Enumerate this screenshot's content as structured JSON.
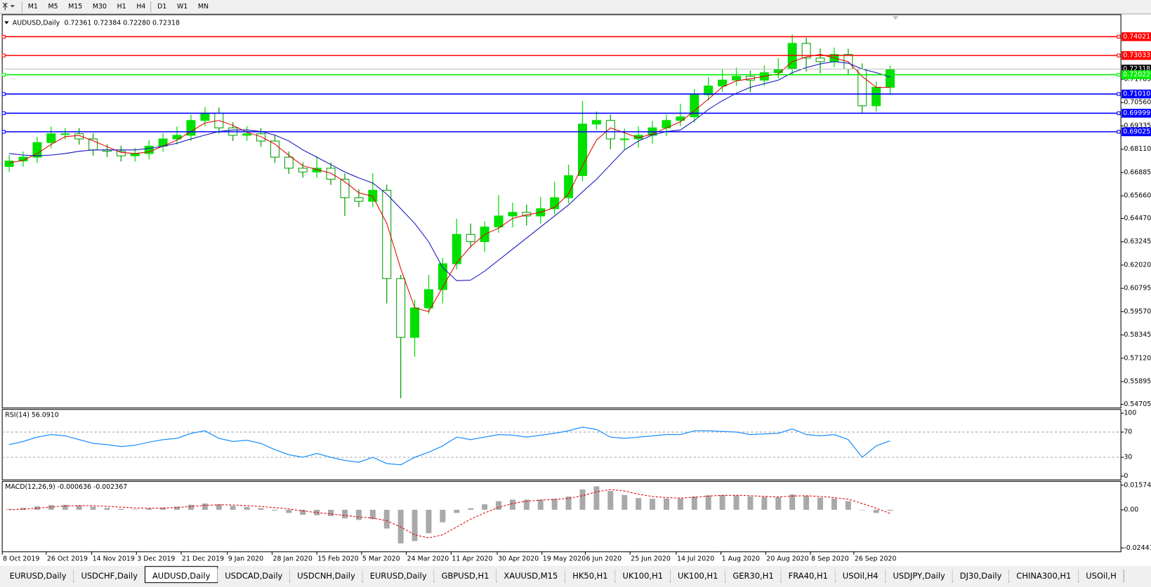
{
  "toolbar": {
    "timeframes": [
      "M1",
      "M5",
      "M15",
      "M30",
      "H1",
      "H4",
      "D1",
      "W1",
      "MN"
    ]
  },
  "chart_data": [
    {
      "type": "candlestick",
      "title": "AUDUSD,Daily",
      "subtitle": "0.72361 0.72384 0.72280 0.72318",
      "x": [
        0,
        1,
        2,
        3,
        4,
        5,
        6,
        7,
        8,
        9,
        10,
        11,
        12,
        13,
        14,
        15,
        16,
        17,
        18,
        19,
        20,
        21,
        22,
        23,
        24,
        25,
        26,
        27,
        28,
        29,
        30,
        31,
        32,
        33,
        34,
        35,
        36,
        37,
        38,
        39,
        40,
        41,
        42,
        43,
        44,
        45,
        46,
        47,
        48,
        49,
        50,
        51,
        52,
        53,
        54,
        55,
        56,
        57,
        58,
        59,
        60,
        61,
        62,
        63
      ],
      "open": [
        0.672,
        0.6749,
        0.6769,
        0.6846,
        0.6892,
        0.6892,
        0.6865,
        0.6807,
        0.68,
        0.6776,
        0.6788,
        0.6827,
        0.6865,
        0.6884,
        0.6962,
        0.7,
        0.6923,
        0.6884,
        0.6892,
        0.6854,
        0.6769,
        0.6711,
        0.6691,
        0.6711,
        0.6653,
        0.6556,
        0.6537,
        0.6595,
        0.6131,
        0.5822,
        0.5977,
        0.6073,
        0.6209,
        0.6363,
        0.6325,
        0.6402,
        0.646,
        0.6479,
        0.646,
        0.6498,
        0.6556,
        0.6672,
        0.6943,
        0.6962,
        0.6865,
        0.6865,
        0.6884,
        0.6923,
        0.6962,
        0.6981,
        0.7097,
        0.7143,
        0.7174,
        0.7194,
        0.7174,
        0.7213,
        0.7232,
        0.7367,
        0.729,
        0.7271,
        0.7309,
        0.7232,
        0.7039,
        0.7136
      ],
      "high": [
        0.6779,
        0.6799,
        0.6876,
        0.693,
        0.6922,
        0.6922,
        0.6895,
        0.6837,
        0.683,
        0.6818,
        0.6857,
        0.6895,
        0.693,
        0.6992,
        0.7032,
        0.703,
        0.6953,
        0.6932,
        0.6922,
        0.6884,
        0.6799,
        0.6741,
        0.6774,
        0.6741,
        0.6683,
        0.66,
        0.6685,
        0.6625,
        0.615,
        0.602,
        0.615,
        0.6239,
        0.6445,
        0.642,
        0.6432,
        0.657,
        0.653,
        0.652,
        0.656,
        0.664,
        0.673,
        0.7064,
        0.701,
        0.6992,
        0.692,
        0.693,
        0.696,
        0.6992,
        0.705,
        0.7127,
        0.719,
        0.723,
        0.724,
        0.7224,
        0.725,
        0.729,
        0.7414,
        0.7397,
        0.734,
        0.7345,
        0.7339,
        0.7262,
        0.7166,
        0.725
      ],
      "low": [
        0.669,
        0.6719,
        0.6739,
        0.6816,
        0.6862,
        0.6835,
        0.6777,
        0.677,
        0.6746,
        0.6746,
        0.6758,
        0.6797,
        0.6835,
        0.6854,
        0.6932,
        0.6893,
        0.6854,
        0.6854,
        0.6824,
        0.6739,
        0.6681,
        0.6661,
        0.6661,
        0.6623,
        0.646,
        0.6507,
        0.6507,
        0.6,
        0.5502,
        0.572,
        0.5947,
        0.6,
        0.6179,
        0.6295,
        0.627,
        0.6372,
        0.64,
        0.641,
        0.642,
        0.6468,
        0.6526,
        0.6642,
        0.6913,
        0.681,
        0.681,
        0.682,
        0.684,
        0.688,
        0.6932,
        0.6951,
        0.7067,
        0.7113,
        0.7144,
        0.711,
        0.7144,
        0.7183,
        0.7202,
        0.722,
        0.721,
        0.7241,
        0.7202,
        0.7003,
        0.7009,
        0.71
      ],
      "close": [
        0.6749,
        0.6769,
        0.6846,
        0.6892,
        0.6892,
        0.6865,
        0.6807,
        0.68,
        0.6776,
        0.6788,
        0.6827,
        0.6865,
        0.6884,
        0.6962,
        0.7,
        0.6923,
        0.6884,
        0.6892,
        0.6854,
        0.6769,
        0.6711,
        0.6691,
        0.6711,
        0.6653,
        0.6556,
        0.6537,
        0.6595,
        0.6131,
        0.5822,
        0.5977,
        0.6073,
        0.6209,
        0.6363,
        0.6325,
        0.6402,
        0.646,
        0.6479,
        0.646,
        0.6498,
        0.6556,
        0.6672,
        0.6943,
        0.6962,
        0.6865,
        0.6865,
        0.6884,
        0.6923,
        0.6962,
        0.6981,
        0.7097,
        0.7143,
        0.7174,
        0.7194,
        0.7174,
        0.7213,
        0.7232,
        0.7367,
        0.729,
        0.7271,
        0.7309,
        0.7232,
        0.7039,
        0.7136,
        0.72318
      ],
      "up_color": "#00e000",
      "down_color": "#00a000",
      "series": [
        {
          "color": "#e00000",
          "values": [
            0.674,
            0.6752,
            0.6788,
            0.6836,
            0.6877,
            0.6883,
            0.6855,
            0.6824,
            0.6794,
            0.6788,
            0.6797,
            0.6827,
            0.6859,
            0.6904,
            0.6949,
            0.6962,
            0.6936,
            0.69,
            0.6877,
            0.6838,
            0.6778,
            0.6724,
            0.6704,
            0.6685,
            0.664,
            0.6582,
            0.6563,
            0.6421,
            0.6183,
            0.5977,
            0.5957,
            0.6086,
            0.6215,
            0.6299,
            0.6363,
            0.6396,
            0.6447,
            0.6466,
            0.6479,
            0.6505,
            0.6575,
            0.6724,
            0.6859,
            0.6923,
            0.6897,
            0.6871,
            0.6891,
            0.6923,
            0.6955,
            0.7013,
            0.7074,
            0.7138,
            0.717,
            0.7181,
            0.7194,
            0.7206,
            0.7271,
            0.7296,
            0.7309,
            0.729,
            0.7271,
            0.7193,
            0.7136,
            0.7136
          ]
        },
        {
          "color": "#1010c0",
          "values": [
            0.6788,
            0.678,
            0.6776,
            0.678,
            0.6788,
            0.68,
            0.6807,
            0.6807,
            0.6807,
            0.6807,
            0.6815,
            0.6826,
            0.6842,
            0.6865,
            0.6885,
            0.6904,
            0.6912,
            0.6912,
            0.6904,
            0.6885,
            0.6854,
            0.6807,
            0.6769,
            0.673,
            0.6691,
            0.666,
            0.6633,
            0.6575,
            0.6498,
            0.6421,
            0.6324,
            0.6189,
            0.612,
            0.6123,
            0.617,
            0.6228,
            0.6286,
            0.6344,
            0.6402,
            0.646,
            0.6518,
            0.6587,
            0.6653,
            0.673,
            0.6807,
            0.6854,
            0.6885,
            0.6904,
            0.6912,
            0.6962,
            0.702,
            0.7066,
            0.7105,
            0.7136,
            0.7155,
            0.7174,
            0.7213,
            0.724,
            0.7259,
            0.7271,
            0.7263,
            0.7232,
            0.7213,
            0.719
          ]
        }
      ],
      "levels": [
        {
          "value": 0.74021,
          "color": "#ff0000"
        },
        {
          "value": 0.73033,
          "color": "#ff0000"
        },
        {
          "value": 0.72022,
          "color": "#00ee00"
        },
        {
          "value": 0.7101,
          "label": "0.71010",
          "color": "#0000ff"
        },
        {
          "value": 0.69999,
          "color": "#0000ff"
        },
        {
          "value": 0.69025,
          "color": "#0000ff"
        }
      ],
      "current_price": 0.72318,
      "xlim": [
        -0.5,
        79.5
      ],
      "ylim": [
        0.5451,
        0.7514
      ],
      "yticks": [
        0.71785,
        {
          "value": 0.7056,
          "label": "0.70560"
        },
        0.69335,
        {
          "value": 0.6811,
          "label": "0.68110"
        },
        0.66885,
        {
          "value": 0.6566,
          "label": "0.65660"
        },
        {
          "value": 0.6447,
          "label": "0.64470"
        },
        0.63245,
        {
          "value": 0.6202,
          "label": "0.62020"
        },
        0.60795,
        {
          "value": 0.5957,
          "label": "0.59570"
        },
        0.58345,
        {
          "value": 0.5712,
          "label": "0.57120"
        },
        0.55895,
        0.54705
      ],
      "xticks": [
        {
          "value": -0.5,
          "label": "8 Oct 2019"
        },
        {
          "value": 2.65,
          "label": "26 Oct 2019"
        },
        {
          "value": 5.9,
          "label": "14 Nov 2019"
        },
        {
          "value": 9.1,
          "label": "3 Dec 2019"
        },
        {
          "value": 12.3,
          "label": "21 Dec 2019"
        },
        {
          "value": 15.6,
          "label": "9 Jan 2020"
        },
        {
          "value": 18.8,
          "label": "28 Jan 2020"
        },
        {
          "value": 22.0,
          "label": "15 Feb 2020"
        },
        {
          "value": 25.2,
          "label": "5 Mar 2020"
        },
        {
          "value": 28.4,
          "label": "24 Mar 2020"
        },
        {
          "value": 31.6,
          "label": "11 Apr 2020"
        },
        {
          "value": 34.9,
          "label": "30 Apr 2020"
        },
        {
          "value": 38.1,
          "label": "19 May 2020"
        },
        {
          "value": 41.2,
          "label": "6 Jun 2020"
        },
        {
          "value": 44.4,
          "label": "25 Jun 2020"
        },
        {
          "value": 47.7,
          "label": "14 Jul 2020"
        },
        {
          "value": 50.9,
          "label": "1 Aug 2020"
        },
        {
          "value": 54.1,
          "label": "20 Aug 2020"
        },
        {
          "value": 57.3,
          "label": "8 Sep 2020"
        },
        {
          "value": 60.4,
          "label": "26 Sep 2020"
        }
      ]
    },
    {
      "type": "line",
      "title": "RSI(14) 56.0910",
      "color": "#1e90ff",
      "values": [
        50,
        55,
        62,
        66,
        64,
        58,
        52,
        50,
        47,
        49,
        54,
        58,
        60,
        68,
        72,
        60,
        55,
        57,
        52,
        42,
        34,
        30,
        36,
        30,
        25,
        22,
        30,
        20,
        18,
        30,
        38,
        48,
        62,
        58,
        62,
        66,
        65,
        62,
        65,
        68,
        72,
        78,
        74,
        62,
        60,
        62,
        64,
        66,
        66,
        72,
        72,
        71,
        70,
        66,
        67,
        68,
        75,
        66,
        64,
        66,
        58,
        30,
        48,
        56.091
      ],
      "ylim": [
        -5.9,
        105.9
      ],
      "yticks": [
        100,
        70,
        30,
        0
      ],
      "levels": [
        70,
        30
      ]
    },
    {
      "type": "macd",
      "title": "MACD(12,26,9) -0.000636 -0.002367",
      "histogram_color": "#a9a9a9",
      "signal_color": "#e00000",
      "histogram": [
        0.0005,
        0.0012,
        0.0022,
        0.003,
        0.0032,
        0.0028,
        0.002,
        0.0012,
        0.0006,
        0.0003,
        0.0008,
        0.0014,
        0.002,
        0.0032,
        0.004,
        0.0035,
        0.0025,
        0.0018,
        0.001,
        -0.0005,
        -0.002,
        -0.0032,
        -0.0035,
        -0.004,
        -0.0055,
        -0.0065,
        -0.006,
        -0.012,
        -0.0215,
        -0.02,
        -0.015,
        -0.008,
        -0.002,
        0.001,
        0.0035,
        0.0055,
        0.0065,
        0.0065,
        0.0065,
        0.007,
        0.0085,
        0.013,
        0.015,
        0.012,
        0.0095,
        0.0075,
        0.007,
        0.0072,
        0.0072,
        0.0085,
        0.0092,
        0.0095,
        0.0092,
        0.0085,
        0.0082,
        0.008,
        0.0098,
        0.009,
        0.0078,
        0.0072,
        0.0055,
        0.0,
        -0.002,
        -0.000636
      ],
      "signal": [
        0.0,
        0.0004,
        0.001,
        0.0018,
        0.0024,
        0.0027,
        0.0026,
        0.0022,
        0.0017,
        0.0012,
        0.001,
        0.0011,
        0.0015,
        0.0021,
        0.0028,
        0.0032,
        0.0031,
        0.0027,
        0.0021,
        0.0014,
        0.0005,
        -0.0007,
        -0.0018,
        -0.0027,
        -0.0036,
        -0.0046,
        -0.0053,
        -0.007,
        -0.011,
        -0.016,
        -0.018,
        -0.016,
        -0.011,
        -0.006,
        -0.002,
        0.0015,
        0.004,
        0.0055,
        0.0062,
        0.0066,
        0.0073,
        0.009,
        0.0115,
        0.013,
        0.012,
        0.01,
        0.0085,
        0.0078,
        0.0075,
        0.008,
        0.0088,
        0.0092,
        0.0093,
        0.009,
        0.0086,
        0.0082,
        0.0088,
        0.009,
        0.0085,
        0.0078,
        0.0068,
        0.004,
        0.001,
        -0.002367
      ],
      "ylim": [
        -0.02687,
        0.0182
      ],
      "yticks": [
        0.015741,
        {
          "value": 0,
          "label": "0.00"
        },
        -0.024412
      ]
    }
  ],
  "tabs": [
    "EURUSD,Daily",
    "USDCHF,Daily",
    "AUDUSD,Daily",
    "USDCAD,Daily",
    "USDCNH,Daily",
    "EURUSD,Daily",
    "GBPUSD,H1",
    "XAUUSD,M15",
    "HK50,H1",
    "UK100,H1",
    "UK100,H1",
    "GER30,H1",
    "FRA40,H1",
    "USOil,H4",
    "USDJPY,Daily",
    "DJ30,Daily",
    "CHINA300,H1",
    "USOil,H"
  ],
  "active_tab": 2
}
